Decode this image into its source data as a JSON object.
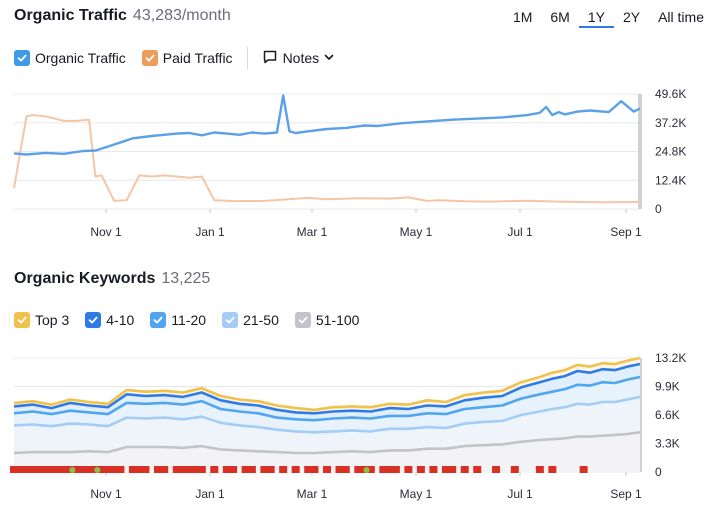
{
  "traffic": {
    "title": "Organic Traffic",
    "value": "43,283/month",
    "ranges": [
      "1M",
      "6M",
      "1Y",
      "2Y",
      "All time"
    ],
    "active_range": "1Y",
    "legend": [
      {
        "label": "Organic Traffic",
        "color": "#3e9ae9"
      },
      {
        "label": "Paid Traffic",
        "color": "#ec9c5b"
      }
    ],
    "notes_label": "Notes"
  },
  "keywords": {
    "title": "Organic Keywords",
    "value": "13,225",
    "legend": [
      {
        "label": "Top 3",
        "color": "#f0c24d"
      },
      {
        "label": "4-10",
        "color": "#2f7be5"
      },
      {
        "label": "11-20",
        "color": "#4fa6ef"
      },
      {
        "label": "21-50",
        "color": "#a3ccf6"
      },
      {
        "label": "51-100",
        "color": "#c3c4ca"
      }
    ]
  },
  "chart_data": [
    {
      "type": "line",
      "x_labels": [
        "Nov 1",
        "Jan 1",
        "Mar 1",
        "May 1",
        "Jul 1",
        "Sep 1"
      ],
      "y_tick_labels": [
        "49.6K",
        "37.2K",
        "24.8K",
        "12.4K",
        "0"
      ],
      "ylim": [
        0,
        49600
      ],
      "grid": true,
      "series": [
        {
          "name": "Organic Traffic",
          "color": "#5aa1e8",
          "x": [
            0,
            2,
            5,
            8,
            11,
            13,
            16,
            19,
            22,
            24,
            26,
            28,
            30,
            32,
            34,
            36,
            38,
            40,
            42,
            43,
            44,
            45,
            47,
            50,
            53,
            56,
            58,
            62,
            66,
            70,
            74,
            78,
            82,
            84,
            85,
            86,
            87,
            88,
            90,
            92,
            95,
            97,
            99,
            100
          ],
          "values": [
            24000,
            23500,
            24200,
            23800,
            25000,
            25200,
            27800,
            30500,
            31500,
            32000,
            32500,
            32800,
            31800,
            33000,
            32500,
            32000,
            33000,
            32500,
            33000,
            49000,
            33500,
            32800,
            33500,
            34500,
            35000,
            36000,
            35800,
            37000,
            37800,
            38500,
            39000,
            39500,
            40500,
            41500,
            44000,
            40500,
            41800,
            40800,
            42000,
            42500,
            41800,
            46500,
            42000,
            43300
          ]
        },
        {
          "name": "Paid Traffic",
          "color": "#f5c5a5",
          "x": [
            0,
            2,
            3,
            5,
            8,
            10,
            12,
            13,
            14,
            16,
            18,
            20,
            22,
            24,
            26,
            28,
            30,
            32,
            34,
            35,
            40,
            47,
            50,
            55,
            60,
            63,
            66,
            68,
            72,
            76,
            82,
            88,
            94,
            100
          ],
          "values": [
            9000,
            40000,
            40500,
            40000,
            38000,
            38000,
            38500,
            14000,
            14500,
            3500,
            3800,
            14500,
            14000,
            14500,
            14000,
            13500,
            14000,
            3800,
            3600,
            3400,
            3500,
            4800,
            4200,
            4600,
            4500,
            5000,
            3500,
            3800,
            3300,
            3200,
            3600,
            3100,
            2900,
            3000
          ]
        }
      ]
    },
    {
      "type": "area",
      "x_labels": [
        "Nov 1",
        "Jan 1",
        "Mar 1",
        "May 1",
        "Jul 1",
        "Sep 1"
      ],
      "y_tick_labels": [
        "13.2K",
        "9.9K",
        "6.6K",
        "3.3K",
        "0"
      ],
      "ylim": [
        0,
        13200
      ],
      "grid": true,
      "x": [
        0,
        3,
        6,
        9,
        12,
        15,
        18,
        21,
        24,
        27,
        30,
        33,
        36,
        39,
        42,
        45,
        48,
        51,
        54,
        57,
        60,
        63,
        66,
        69,
        72,
        75,
        78,
        81,
        84,
        86,
        88,
        90,
        92,
        94,
        96,
        98,
        100
      ],
      "series": [
        {
          "name": "Top 3",
          "color": "#f0c24d",
          "values": [
            8000,
            8200,
            7800,
            8400,
            8100,
            7900,
            9500,
            9300,
            9400,
            9200,
            9700,
            8800,
            8400,
            8200,
            7700,
            7400,
            7200,
            7500,
            7600,
            7500,
            7900,
            7800,
            8300,
            8100,
            8900,
            9200,
            9400,
            10400,
            11000,
            11500,
            11800,
            12400,
            12200,
            12600,
            12500,
            12900,
            13200
          ]
        },
        {
          "name": "4-10",
          "color": "#2f7be5",
          "values": [
            7600,
            7800,
            7400,
            8000,
            7700,
            7500,
            9000,
            8800,
            8900,
            8700,
            9200,
            8300,
            7900,
            7700,
            7200,
            6900,
            6800,
            7000,
            7100,
            7000,
            7400,
            7300,
            7700,
            7600,
            8300,
            8600,
            8800,
            9800,
            10400,
            10800,
            11100,
            11700,
            11500,
            11900,
            11800,
            12200,
            12500
          ]
        },
        {
          "name": "11-20",
          "color": "#4fa6ef",
          "values": [
            6800,
            7000,
            6700,
            7100,
            6900,
            6700,
            8000,
            7900,
            8000,
            7800,
            8200,
            7300,
            7000,
            6800,
            6300,
            6100,
            6000,
            6200,
            6300,
            6200,
            6500,
            6500,
            6800,
            6700,
            7300,
            7500,
            7700,
            8500,
            9000,
            9300,
            9600,
            10100,
            10000,
            10400,
            10300,
            10700,
            11000
          ]
        },
        {
          "name": "21-50",
          "color": "#a3ccf6",
          "values": [
            5400,
            5500,
            5300,
            5600,
            5500,
            5300,
            6300,
            6200,
            6300,
            6100,
            6400,
            5700,
            5400,
            5200,
            4900,
            4700,
            4600,
            4700,
            4800,
            4700,
            5000,
            5000,
            5200,
            5100,
            5600,
            5800,
            5900,
            6600,
            7000,
            7300,
            7500,
            7900,
            7800,
            8100,
            8100,
            8400,
            8700
          ]
        },
        {
          "name": "51-100",
          "color": "#c3c4ca",
          "values": [
            2200,
            2300,
            2300,
            2300,
            2400,
            2300,
            2900,
            2900,
            2900,
            2800,
            3000,
            2600,
            2500,
            2400,
            2300,
            2200,
            2200,
            2300,
            2400,
            2300,
            2500,
            2500,
            2700,
            2700,
            3000,
            3100,
            3200,
            3500,
            3700,
            3800,
            3900,
            4100,
            4100,
            4200,
            4300,
            4400,
            4600
          ]
        }
      ],
      "notes_flags": {
        "red": [
          0,
          1,
          2,
          3,
          4,
          5,
          6,
          7,
          8,
          10,
          11,
          12,
          14,
          15,
          16,
          17,
          19,
          20,
          21,
          23,
          24,
          26,
          27,
          28,
          29,
          30,
          32,
          34,
          35,
          37,
          38,
          40,
          41,
          43,
          45,
          47,
          48,
          50,
          52,
          53,
          55,
          57,
          59,
          60,
          61,
          63,
          65,
          67,
          69,
          70,
          72,
          74,
          77,
          80,
          84,
          86,
          91
        ],
        "green": [
          9,
          13,
          56
        ]
      }
    }
  ]
}
